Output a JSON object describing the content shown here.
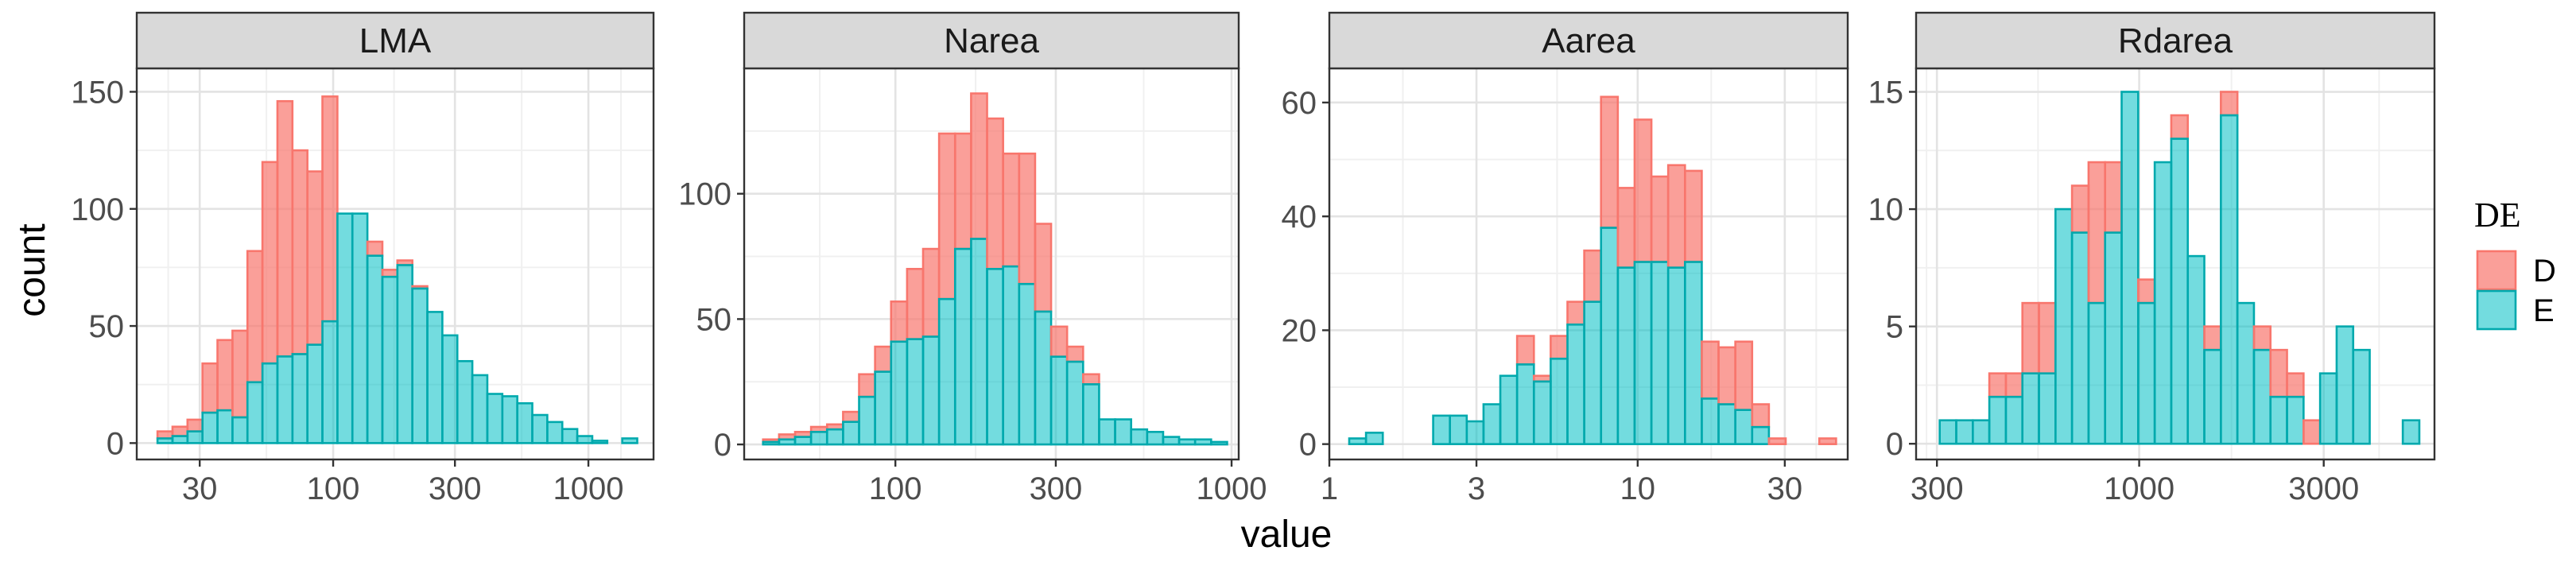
{
  "chart_data": {
    "type": "bar",
    "subtype": "stacked-histogram-facets",
    "xlabel": "value",
    "ylabel": "count",
    "legend": {
      "title": "DE",
      "position": "right",
      "entries": [
        {
          "key": "D",
          "fill": "#F8766D",
          "fillOpacity": 0.7,
          "stroke": "#F8766D"
        },
        {
          "key": "E",
          "fill": "#00BFC4",
          "fillOpacity": 0.55,
          "stroke": "#00A9AD"
        }
      ]
    },
    "grid": true,
    "facets": [
      {
        "title": "LMA",
        "x_scale": "log10",
        "xlim": [
          17,
          1800
        ],
        "ylim": [
          -7,
          160
        ],
        "x_ticks": [
          {
            "value": 30,
            "label": "30"
          },
          {
            "value": 100,
            "label": "100"
          },
          {
            "value": 300,
            "label": "300"
          },
          {
            "value": 1000,
            "label": "1000"
          }
        ],
        "y_ticks": [
          {
            "value": 0,
            "label": "0"
          },
          {
            "value": 50,
            "label": "50"
          },
          {
            "value": 100,
            "label": "100"
          },
          {
            "value": 150,
            "label": "150"
          }
        ],
        "bin_start": 20.5,
        "bin_end": 1554,
        "E": [
          2,
          3,
          5,
          13,
          14,
          11,
          26,
          34,
          37,
          38,
          42,
          52,
          98,
          98,
          80,
          71,
          76,
          66,
          56,
          46,
          35,
          29,
          21,
          20,
          17,
          12,
          9,
          6,
          3,
          1,
          0,
          2
        ],
        "D": [
          3,
          4,
          5,
          21,
          30,
          37,
          56,
          86,
          109,
          87,
          74,
          96,
          0,
          0,
          6,
          3,
          2,
          1,
          0,
          0,
          0,
          0,
          0,
          0,
          0,
          0,
          0,
          0,
          0,
          0,
          0,
          0
        ]
      },
      {
        "title": "Narea",
        "x_scale": "log10",
        "xlim": [
          35.5,
          1050
        ],
        "ylim": [
          -6,
          150
        ],
        "x_ticks": [
          {
            "value": 100,
            "label": "100"
          },
          {
            "value": 300,
            "label": "300"
          },
          {
            "value": 1000,
            "label": "1000"
          }
        ],
        "y_ticks": [
          {
            "value": 0,
            "label": "0"
          },
          {
            "value": 50,
            "label": "50"
          },
          {
            "value": 100,
            "label": "100"
          }
        ],
        "bin_start": 40.4,
        "bin_end": 970,
        "E": [
          1,
          2,
          3,
          5,
          6,
          9,
          19,
          29,
          41,
          42,
          43,
          58,
          78,
          82,
          70,
          71,
          64,
          53,
          35,
          33,
          24,
          10,
          10,
          6,
          5,
          3,
          2,
          2,
          1
        ],
        "D": [
          1,
          2,
          2,
          2,
          2,
          4,
          9,
          10,
          16,
          28,
          35,
          66,
          46,
          58,
          60,
          45,
          52,
          35,
          12,
          6,
          4,
          0,
          0,
          0,
          0,
          0,
          0,
          0,
          0
        ]
      },
      {
        "title": "Aarea",
        "x_scale": "log10",
        "xlim": [
          1,
          48
        ],
        "ylim": [
          -2.7,
          66
        ],
        "x_ticks": [
          {
            "value": 1,
            "label": "1"
          },
          {
            "value": 3,
            "label": "3"
          },
          {
            "value": 10,
            "label": "10"
          },
          {
            "value": 30,
            "label": "30"
          }
        ],
        "y_ticks": [
          {
            "value": 0,
            "label": "0"
          },
          {
            "value": 20,
            "label": "20"
          },
          {
            "value": 40,
            "label": "40"
          },
          {
            "value": 60,
            "label": "60"
          }
        ],
        "bin_start": 1.16,
        "bin_end": 44,
        "E": [
          1,
          2,
          0,
          0,
          0,
          5,
          5,
          4,
          7,
          12,
          14,
          11,
          15,
          21,
          25,
          38,
          31,
          32,
          32,
          31,
          32,
          8,
          7,
          6,
          3,
          0,
          0,
          0,
          0
        ],
        "D": [
          0,
          0,
          0,
          0,
          0,
          0,
          0,
          0,
          0,
          0,
          5,
          1,
          4,
          4,
          9,
          23,
          14,
          25,
          15,
          18,
          16,
          10,
          10,
          12,
          4,
          1,
          0,
          0,
          1
        ]
      },
      {
        "title": "Rdarea",
        "x_scale": "log10",
        "xlim": [
          265,
          5800
        ],
        "ylim": [
          -0.67,
          16
        ],
        "x_ticks": [
          {
            "value": 300,
            "label": "300"
          },
          {
            "value": 1000,
            "label": "1000"
          },
          {
            "value": 3000,
            "label": "3000"
          }
        ],
        "y_ticks": [
          {
            "value": 0,
            "label": "0"
          },
          {
            "value": 5,
            "label": "5"
          },
          {
            "value": 10,
            "label": "10"
          },
          {
            "value": 15,
            "label": "15"
          }
        ],
        "bin_start": 305,
        "bin_end": 5300,
        "E": [
          1,
          1,
          1,
          2,
          2,
          3,
          3,
          10,
          9,
          6,
          9,
          15,
          6,
          12,
          13,
          8,
          4,
          14,
          6,
          4,
          2,
          2,
          0,
          3,
          5,
          4,
          0,
          0,
          1
        ],
        "D": [
          0,
          0,
          0,
          1,
          1,
          3,
          3,
          0,
          2,
          6,
          3,
          0,
          1,
          0,
          1,
          0,
          1,
          1,
          0,
          1,
          2,
          1,
          1,
          0,
          0,
          0,
          0,
          0,
          0
        ]
      }
    ]
  }
}
